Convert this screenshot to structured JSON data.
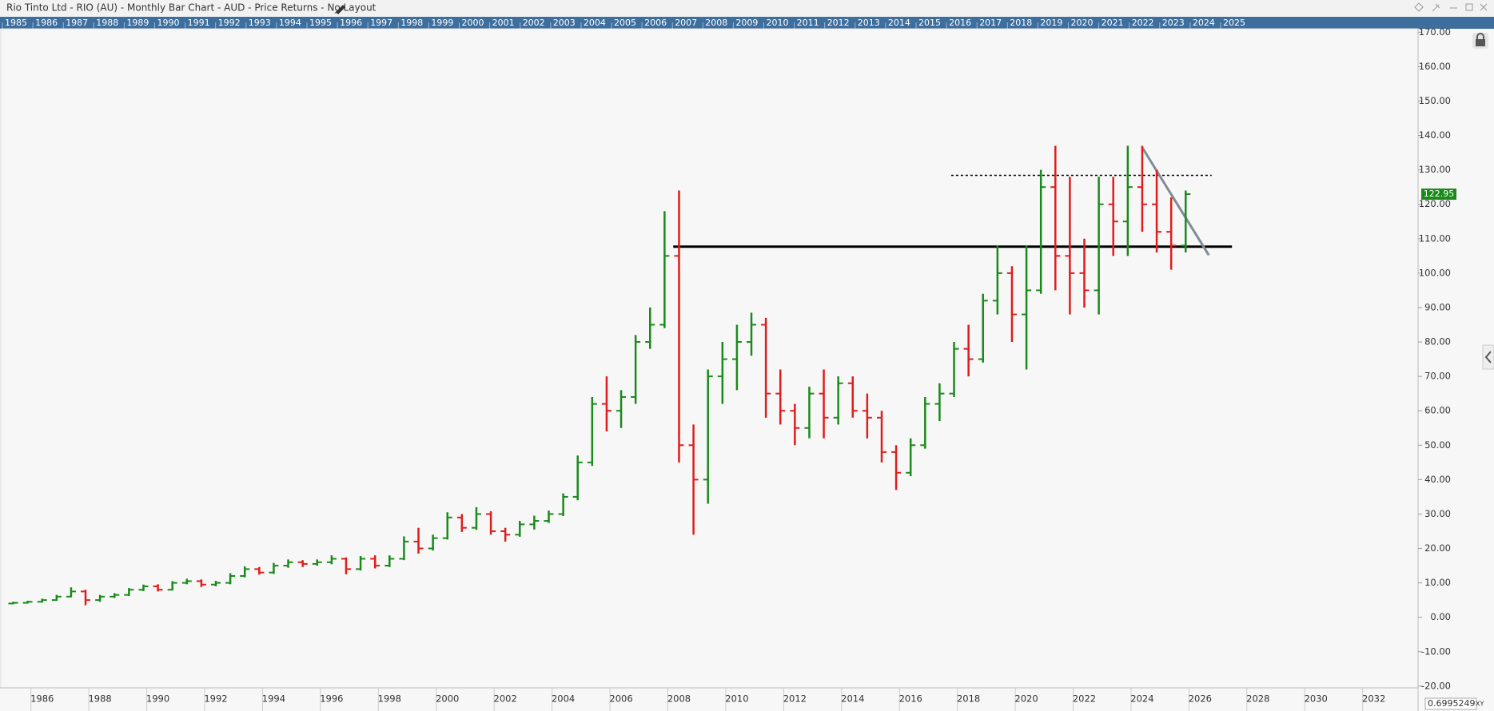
{
  "window_title": "Rio Tinto Ltd - RIO (AU) - Monthly Bar Chart - AUD - Price Returns - No Layout",
  "cursor_value": "0.6995249",
  "cursor_mode": "XY",
  "chart_data": {
    "type": "ohlc",
    "up_color": "#1a8a1a",
    "down_color": "#e01c1c",
    "x": [
      1985.0,
      1985.5,
      1986.0,
      1986.5,
      1987.0,
      1987.5,
      1988.0,
      1988.5,
      1989.0,
      1989.5,
      1990.0,
      1990.5,
      1991.0,
      1991.5,
      1992.0,
      1992.5,
      1993.0,
      1993.5,
      1994.0,
      1994.5,
      1995.0,
      1995.5,
      1996.0,
      1996.5,
      1997.0,
      1997.5,
      1998.0,
      1998.5,
      1999.0,
      1999.5,
      2000.0,
      2000.5,
      2001.0,
      2001.5,
      2002.0,
      2002.5,
      2003.0,
      2003.5,
      2004.0,
      2004.5,
      2005.0,
      2005.5,
      2006.0,
      2006.5,
      2007.0,
      2007.5,
      2008.0,
      2008.5,
      2009.0,
      2009.5,
      2010.0,
      2010.5,
      2011.0,
      2011.5,
      2012.0,
      2012.5,
      2013.0,
      2013.5,
      2014.0,
      2014.5,
      2015.0,
      2015.5,
      2016.0,
      2016.5,
      2017.0,
      2017.5,
      2018.0,
      2018.5,
      2019.0,
      2019.5,
      2020.0,
      2020.5,
      2021.0,
      2021.5,
      2022.0,
      2022.5,
      2023.0,
      2023.5,
      2024.0,
      2024.5,
      2025.0,
      2025.5
    ],
    "open": [
      4.0,
      4.2,
      4.5,
      5.0,
      6.0,
      7.5,
      5.0,
      6.0,
      6.5,
      8.0,
      9.0,
      8.0,
      10.0,
      10.5,
      9.5,
      10.0,
      12.0,
      14.0,
      13.0,
      15.0,
      16.0,
      15.5,
      16.0,
      17.0,
      14.0,
      17.0,
      15.0,
      17.0,
      22.0,
      20.0,
      23.0,
      29.0,
      26.0,
      30.0,
      25.0,
      24.0,
      27.0,
      28.0,
      30.0,
      35.0,
      45.0,
      62.0,
      60.0,
      64.0,
      80.0,
      85.0,
      105.0,
      50.0,
      40.0,
      70.0,
      75.0,
      80.0,
      85.0,
      65.0,
      60.0,
      55.0,
      65.0,
      58.0,
      68.0,
      60.0,
      58.0,
      48.0,
      42.0,
      50.0,
      62.0,
      65.0,
      78.0,
      75.0,
      92.0,
      100.0,
      88.0,
      95.0,
      125.0,
      105.0,
      100.0,
      95.0,
      120.0,
      115.0,
      125.0,
      120.0,
      112.0,
      108.0
    ],
    "high": [
      4.5,
      4.8,
      5.4,
      6.5,
      8.7,
      8.0,
      6.5,
      7.0,
      8.5,
      9.5,
      9.6,
      10.5,
      11.2,
      11.0,
      10.6,
      12.8,
      14.8,
      14.6,
      15.8,
      16.8,
      16.6,
      16.8,
      18.0,
      17.4,
      17.8,
      18.0,
      18.0,
      23.5,
      26.0,
      24.0,
      30.5,
      30.0,
      32.0,
      30.8,
      26.0,
      28.0,
      29.5,
      31.0,
      36.0,
      47.0,
      64.0,
      70.0,
      66.0,
      82.0,
      90.0,
      118.0,
      124.0,
      56.0,
      72.0,
      80.0,
      85.0,
      88.5,
      87.0,
      72.0,
      62.0,
      67.0,
      72.0,
      70.0,
      70.0,
      65.0,
      60.0,
      50.0,
      52.0,
      64.0,
      68.0,
      80.0,
      85.0,
      94.0,
      108.0,
      102.0,
      108.0,
      130.0,
      137.0,
      128.0,
      110.0,
      128.0,
      128.0,
      137.0,
      137.0,
      130.0,
      122.0,
      124.0
    ],
    "low": [
      3.8,
      4.0,
      4.3,
      4.8,
      5.8,
      3.5,
      4.5,
      5.6,
      6.2,
      7.6,
      7.5,
      7.8,
      9.6,
      8.8,
      9.0,
      9.6,
      11.6,
      12.4,
      12.6,
      14.4,
      14.6,
      15.0,
      15.4,
      12.5,
      13.6,
      14.2,
      14.6,
      16.6,
      18.5,
      19.4,
      22.6,
      24.8,
      25.4,
      24.0,
      22.0,
      23.4,
      25.5,
      27.4,
      29.4,
      34.0,
      44.0,
      54.0,
      55.0,
      62.0,
      78.0,
      84.0,
      45.0,
      24.0,
      33.0,
      62.0,
      66.0,
      76.0,
      58.0,
      56.0,
      50.0,
      52.0,
      52.0,
      56.0,
      58.0,
      52.0,
      45.0,
      37.0,
      41.0,
      49.0,
      57.0,
      64.0,
      70.0,
      74.0,
      88.0,
      80.0,
      72.0,
      94.0,
      95.0,
      88.0,
      90.0,
      88.0,
      105.0,
      105.0,
      112.0,
      106.0,
      101.0,
      106.0
    ],
    "close": [
      4.2,
      4.5,
      5.0,
      6.0,
      7.5,
      5.0,
      6.0,
      6.5,
      8.0,
      9.0,
      8.0,
      10.0,
      10.5,
      9.5,
      10.0,
      12.0,
      14.0,
      13.0,
      15.0,
      16.0,
      15.5,
      16.0,
      17.0,
      14.0,
      17.0,
      15.0,
      17.0,
      22.0,
      20.0,
      23.0,
      29.0,
      26.0,
      30.0,
      25.0,
      24.0,
      27.0,
      28.0,
      30.0,
      35.0,
      45.0,
      62.0,
      60.0,
      64.0,
      80.0,
      85.0,
      105.0,
      50.0,
      40.0,
      70.0,
      75.0,
      80.0,
      85.0,
      65.0,
      60.0,
      55.0,
      65.0,
      58.0,
      68.0,
      60.0,
      58.0,
      48.0,
      42.0,
      50.0,
      62.0,
      65.0,
      78.0,
      75.0,
      92.0,
      100.0,
      88.0,
      95.0,
      125.0,
      105.0,
      100.0,
      95.0,
      120.0,
      115.0,
      125.0,
      120.0,
      112.0,
      108.0,
      122.95
    ],
    "last_label_color": "#1a8a1a",
    "xlim": [
      1984.6,
      2033.5
    ],
    "ylim": [
      -20.5,
      171
    ],
    "xticks": [
      1986,
      1988,
      1990,
      1992,
      1994,
      1996,
      1998,
      2000,
      2002,
      2004,
      2006,
      2008,
      2010,
      2012,
      2014,
      2016,
      2018,
      2020,
      2022,
      2024,
      2026,
      2028,
      2030,
      2032
    ],
    "yticks": [
      {
        "value": -20,
        "label": "-20.00"
      },
      {
        "value": -10,
        "label": "-10.00"
      },
      {
        "value": 0,
        "label": "0.00"
      },
      {
        "value": 10,
        "label": "10.00"
      },
      {
        "value": 20,
        "label": "20.00"
      },
      {
        "value": 30,
        "label": "30.00"
      },
      {
        "value": 40,
        "label": "40.00"
      },
      {
        "value": 50,
        "label": "50.00"
      },
      {
        "value": 60,
        "label": "60.00"
      },
      {
        "value": 70,
        "label": "70.00"
      },
      {
        "value": 80,
        "label": "80.00"
      },
      {
        "value": 90,
        "label": "90.00"
      },
      {
        "value": 100,
        "label": "100.00"
      },
      {
        "value": 110,
        "label": "110.00"
      },
      {
        "value": 120,
        "label": "120.00"
      },
      {
        "value": 130,
        "label": "130.00"
      },
      {
        "value": 140,
        "label": "140.00"
      },
      {
        "value": 150,
        "label": "150.00"
      },
      {
        "value": 160,
        "label": "160.00"
      },
      {
        "value": 170,
        "label": "170.00"
      }
    ],
    "lines": [
      {
        "x": [
          2007.8,
          2027.1
        ],
        "y": [
          107.7,
          107.7
        ],
        "color": "#000000",
        "style": "solid"
      },
      {
        "x": [
          2017.4,
          2026.4
        ],
        "y": [
          128.4,
          128.4
        ],
        "color": "#000000",
        "style": "dotted"
      },
      {
        "x": [
          2024.0,
          2026.3
        ],
        "y": [
          136.5,
          105.2
        ],
        "color": "#7f8c99",
        "style": "solid"
      }
    ],
    "navigator_years": [
      1985,
      1986,
      1987,
      1988,
      1989,
      1990,
      1991,
      1992,
      1993,
      1994,
      1995,
      1996,
      1997,
      1998,
      1999,
      2000,
      2001,
      2002,
      2003,
      2004,
      2005,
      2006,
      2007,
      2008,
      2009,
      2010,
      2011,
      2012,
      2013,
      2014,
      2015,
      2016,
      2017,
      2018,
      2019,
      2020,
      2021,
      2022,
      2023,
      2024,
      2025
    ]
  }
}
